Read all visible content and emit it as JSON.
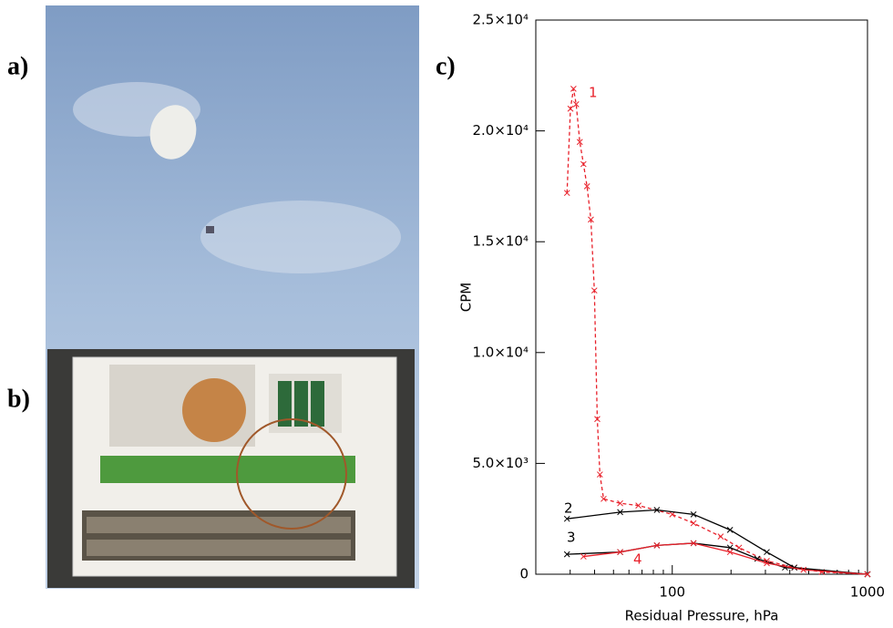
{
  "panels": {
    "a": "a)",
    "b": "b)",
    "c": "c)"
  },
  "chart_data": {
    "type": "line",
    "x_label": "Residual Pressure,  hPa",
    "y_label": "CPM",
    "xlog": true,
    "xlim": [
      20,
      1000
    ],
    "xticks": [
      100,
      1000
    ],
    "ylim": [
      0,
      25000
    ],
    "yticks": [
      0,
      {
        "value": 5000,
        "label": "5.0×10³"
      },
      {
        "value": 10000,
        "label": "1.0×10⁴"
      },
      {
        "value": 15000,
        "label": "1.5×10⁴"
      },
      {
        "value": 20000,
        "label": "2.0×10⁴"
      },
      {
        "value": 25000,
        "label": "2.5×10⁴"
      }
    ],
    "series": [
      {
        "name": "1",
        "color": "#e8202a",
        "dashed": true,
        "x": [
          28.9,
          30.1,
          31.2,
          32.2,
          33.6,
          35.1,
          36.6,
          38.3,
          39.9,
          41.3,
          42.6,
          44.5,
          54.1,
          67.1,
          100,
          128.5,
          177,
          220,
          305,
          422,
          583,
          1000
        ],
        "values": [
          17200,
          21000,
          21900,
          21200,
          19500,
          18500,
          17500,
          16000,
          12800,
          7000,
          4500,
          3400,
          3200,
          3100,
          2700,
          2300,
          1700,
          1200,
          600,
          300,
          100,
          0
        ]
      },
      {
        "name": "2",
        "color": "#000000",
        "dashed": false,
        "x": [
          28.9,
          54.1,
          83.4,
          128.5,
          197.7,
          305,
          422,
          1000
        ],
        "values": [
          2500,
          2800,
          2900,
          2700,
          2000,
          1000,
          300,
          0
        ]
      },
      {
        "name": "3",
        "color": "#000000",
        "dashed": false,
        "x": [
          28.9,
          54.1,
          83.4,
          128.5,
          197.7,
          273,
          378,
          1000
        ],
        "values": [
          900,
          1000,
          1300,
          1400,
          1200,
          700,
          300,
          0
        ]
      },
      {
        "name": "4",
        "color": "#e8202a",
        "dashed": false,
        "x": [
          35.1,
          54.1,
          83.4,
          128.5,
          197.7,
          305,
          470,
          1000
        ],
        "values": [
          800,
          1000,
          1300,
          1400,
          1000,
          500,
          200,
          0
        ]
      }
    ]
  }
}
